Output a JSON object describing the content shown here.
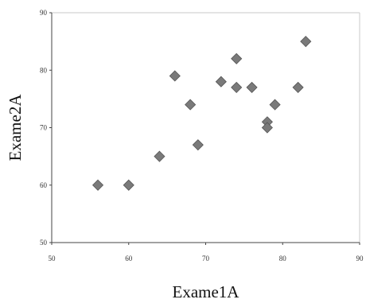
{
  "chart_data": {
    "type": "scatter",
    "title": "",
    "xlabel": "Exame1A",
    "ylabel": "Exame2A",
    "xlim": [
      50,
      90
    ],
    "ylim": [
      50,
      90
    ],
    "xticks": [
      "50",
      "60",
      "70",
      "80",
      "90"
    ],
    "yticks": [
      "50",
      "60",
      "70",
      "80",
      "90"
    ],
    "grid": false,
    "legend": "none",
    "marker": "diamond",
    "marker_color": "#7a7a7a",
    "axis_color": "#444444",
    "frame_color": "#c8c8c8",
    "series": [
      {
        "points": [
          {
            "x": 56,
            "y": 60
          },
          {
            "x": 60,
            "y": 60
          },
          {
            "x": 64,
            "y": 65
          },
          {
            "x": 66,
            "y": 79
          },
          {
            "x": 68,
            "y": 74
          },
          {
            "x": 69,
            "y": 67
          },
          {
            "x": 72,
            "y": 78
          },
          {
            "x": 74,
            "y": 82
          },
          {
            "x": 74,
            "y": 77
          },
          {
            "x": 76,
            "y": 77
          },
          {
            "x": 78,
            "y": 71
          },
          {
            "x": 78,
            "y": 70
          },
          {
            "x": 79,
            "y": 74
          },
          {
            "x": 82,
            "y": 77
          },
          {
            "x": 83,
            "y": 85
          }
        ]
      }
    ]
  }
}
